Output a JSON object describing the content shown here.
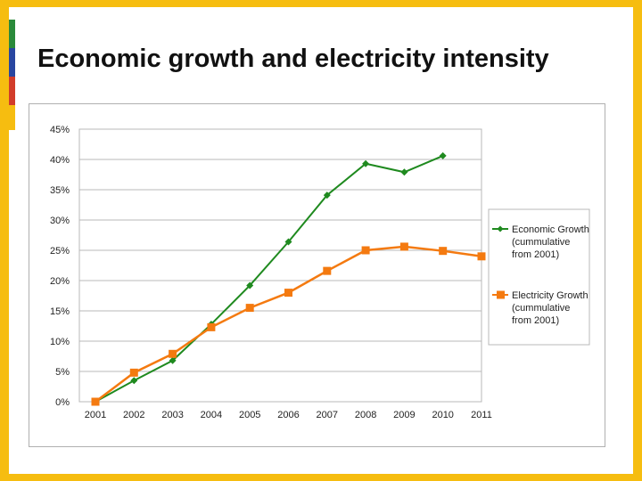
{
  "slide": {
    "title": "Economic growth and electricity intensity"
  },
  "colors": {
    "economic": "#1f8a1f",
    "electricity": "#f47a10",
    "grid": "#b8b8b8"
  },
  "chart_data": {
    "type": "line",
    "x": [
      "2001",
      "2002",
      "2003",
      "2004",
      "2005",
      "2006",
      "2007",
      "2008",
      "2009",
      "2010",
      "2011"
    ],
    "series": [
      {
        "name": "Economic Growth (cummulative from 2001)",
        "legend_lines": [
          "Economic Growth",
          "(cummulative",
          "from 2001)"
        ],
        "marker": "diamond",
        "values": [
          0,
          3.5,
          6.8,
          12.8,
          19.2,
          26.4,
          34.1,
          39.3,
          37.9,
          40.6,
          null
        ]
      },
      {
        "name": "Electricity Growth (cummulative from 2001)",
        "legend_lines": [
          "Electricity Growth",
          "(cummulative",
          "from 2001)"
        ],
        "marker": "square",
        "values": [
          0,
          4.8,
          7.9,
          12.3,
          15.5,
          18.0,
          21.6,
          25.0,
          25.6,
          24.9,
          24.0
        ]
      }
    ],
    "yticks": [
      "0%",
      "5%",
      "10%",
      "15%",
      "20%",
      "25%",
      "30%",
      "35%",
      "40%",
      "45%"
    ],
    "ylim": [
      0,
      45
    ],
    "grid": true,
    "legend": "right"
  }
}
